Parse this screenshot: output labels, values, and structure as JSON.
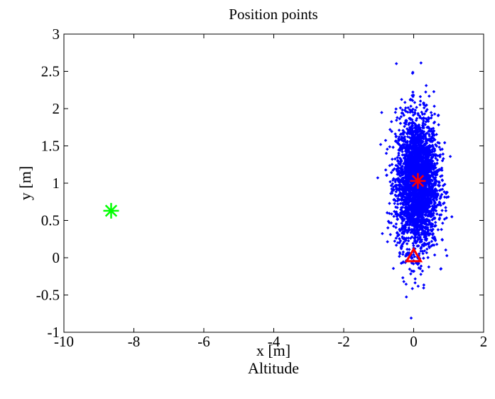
{
  "chart_data": {
    "type": "scatter",
    "title": "Position points",
    "xlabel": "x [m]",
    "ylabel": "y [m]",
    "caption": "Altitude",
    "xlim": [
      -10,
      2
    ],
    "ylim": [
      -1,
      3
    ],
    "xticks": [
      "-10",
      "-8",
      "-6",
      "-4",
      "-2",
      "0",
      "2"
    ],
    "yticks": [
      "-1",
      "-0.5",
      "0",
      "0.5",
      "1",
      "1.5",
      "2",
      "2.5",
      "3"
    ],
    "grid": false,
    "legend": "none",
    "cloud": {
      "marker": "dot",
      "color": "#0000ff",
      "center": [
        0.1,
        1.0
      ],
      "std": [
        0.3,
        0.45
      ],
      "count": 3000
    },
    "series": [
      {
        "marker": "asterisk",
        "color": "#00ff00",
        "points": [
          [
            -8.65,
            0.63
          ]
        ]
      },
      {
        "marker": "asterisk",
        "color": "#ff0000",
        "points": [
          [
            0.12,
            1.03
          ]
        ]
      },
      {
        "marker": "triangle",
        "color": "#ff0000",
        "points": [
          [
            0.0,
            0.02
          ]
        ]
      }
    ]
  }
}
